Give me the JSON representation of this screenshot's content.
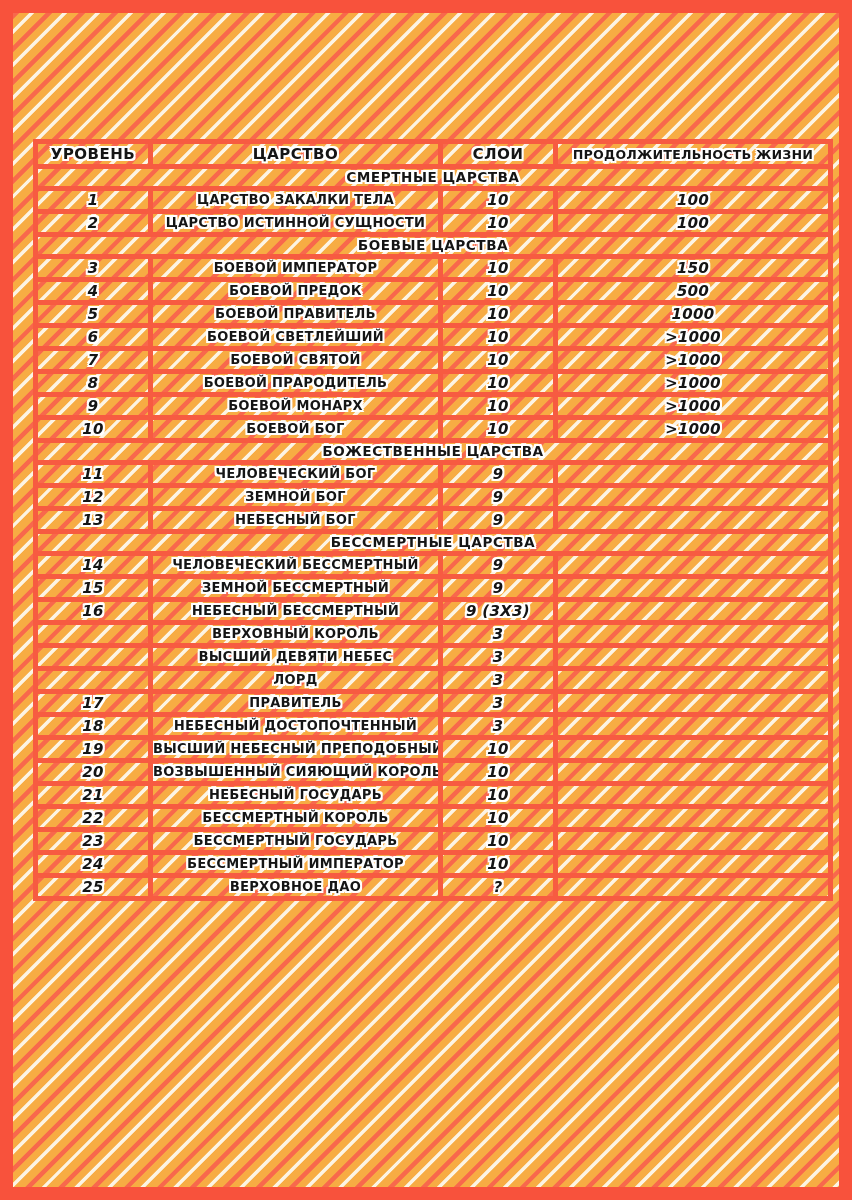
{
  "colors": {
    "frame_coral": "#F8523C",
    "line_coral": "#F75B41",
    "stripe_red": "#F8684C",
    "background_orange": "#F7AC43",
    "stripe_cream": "#FCF4E4",
    "text_black": "#151515",
    "text_outline": "#FFFFFF"
  },
  "chart_data": {
    "type": "table",
    "columns": [
      "УРОВЕНЬ",
      "ЦАРСТВО",
      "СЛОИ",
      "ПРОДОЛЖИТЕЛЬНОСТЬ ЖИЗНИ"
    ],
    "rows": [
      {
        "row_type": "section",
        "label": "СМЕРТНЫЕ ЦАРСТВА"
      },
      {
        "row_type": "data",
        "level": "1",
        "realm": "ЦАРСТВО ЗАКАЛКИ ТЕЛА",
        "layers": "10",
        "lifespan": "100"
      },
      {
        "row_type": "data",
        "level": "2",
        "realm": "ЦАРСТВО ИСТИННОЙ СУЩНОСТИ",
        "layers": "10",
        "lifespan": "100"
      },
      {
        "row_type": "section",
        "label": "БОЕВЫЕ ЦАРСТВА"
      },
      {
        "row_type": "data",
        "level": "3",
        "realm": "БОЕВОЙ ИМПЕРАТОР",
        "layers": "10",
        "lifespan": "150"
      },
      {
        "row_type": "data",
        "level": "4",
        "realm": "БОЕВОЙ ПРЕДОК",
        "layers": "10",
        "lifespan": "500"
      },
      {
        "row_type": "data",
        "level": "5",
        "realm": "БОЕВОЙ ПРАВИТЕЛЬ",
        "layers": "10",
        "lifespan": "1000"
      },
      {
        "row_type": "data",
        "level": "6",
        "realm": "БОЕВОЙ СВЕТЛЕЙШИЙ",
        "layers": "10",
        "lifespan": ">1000"
      },
      {
        "row_type": "data",
        "level": "7",
        "realm": "БОЕВОЙ СВЯТОЙ",
        "layers": "10",
        "lifespan": ">1000"
      },
      {
        "row_type": "data",
        "level": "8",
        "realm": "БОЕВОЙ ПРАРОДИТЕЛЬ",
        "layers": "10",
        "lifespan": ">1000"
      },
      {
        "row_type": "data",
        "level": "9",
        "realm": "БОЕВОЙ МОНАРХ",
        "layers": "10",
        "lifespan": ">1000"
      },
      {
        "row_type": "data",
        "level": "10",
        "realm": "БОЕВОЙ БОГ",
        "layers": "10",
        "lifespan": ">1000"
      },
      {
        "row_type": "section",
        "label": "БОЖЕСТВЕННЫЕ ЦАРСТВА"
      },
      {
        "row_type": "data",
        "level": "11",
        "realm": "ЧЕЛОВЕЧЕСКИЙ БОГ",
        "layers": "9",
        "lifespan": ""
      },
      {
        "row_type": "data",
        "level": "12",
        "realm": "ЗЕМНОЙ БОГ",
        "layers": "9",
        "lifespan": ""
      },
      {
        "row_type": "data",
        "level": "13",
        "realm": "НЕБЕСНЫЙ БОГ",
        "layers": "9",
        "lifespan": ""
      },
      {
        "row_type": "section",
        "label": "БЕССМЕРТНЫЕ ЦАРСТВА"
      },
      {
        "row_type": "data",
        "level": "14",
        "realm": "ЧЕЛОВЕЧЕСКИЙ БЕССМЕРТНЫЙ",
        "layers": "9",
        "lifespan": ""
      },
      {
        "row_type": "data",
        "level": "15",
        "realm": "ЗЕМНОЙ БЕССМЕРТНЫЙ",
        "layers": "9",
        "lifespan": ""
      },
      {
        "row_type": "data",
        "level": "16",
        "realm": "НЕБЕСНЫЙ БЕССМЕРТНЫЙ",
        "layers": "9 (3X3)",
        "lifespan": ""
      },
      {
        "row_type": "data",
        "level": "",
        "realm": "ВЕРХОВНЫЙ КОРОЛЬ",
        "layers": "3",
        "lifespan": ""
      },
      {
        "row_type": "data",
        "level": "",
        "realm": "ВЫСШИЙ ДЕВЯТИ НЕБЕС",
        "layers": "3",
        "lifespan": ""
      },
      {
        "row_type": "data",
        "level": "",
        "realm": "ЛОРД",
        "layers": "3",
        "lifespan": ""
      },
      {
        "row_type": "data",
        "level": "17",
        "realm": "ПРАВИТЕЛЬ",
        "layers": "3",
        "lifespan": ""
      },
      {
        "row_type": "data",
        "level": "18",
        "realm": "НЕБЕСНЫЙ ДОСТОПОЧТЕННЫЙ",
        "layers": "3",
        "lifespan": ""
      },
      {
        "row_type": "data",
        "level": "19",
        "realm": "ВЫСШИЙ НЕБЕСНЫЙ ПРЕПОДОБНЫЙ",
        "layers": "10",
        "lifespan": ""
      },
      {
        "row_type": "data",
        "level": "20",
        "realm": "ВОЗВЫШЕННЫЙ СИЯЮЩИЙ КОРОЛЬ",
        "layers": "10",
        "lifespan": ""
      },
      {
        "row_type": "data",
        "level": "21",
        "realm": "НЕБЕСНЫЙ ГОСУДАРЬ",
        "layers": "10",
        "lifespan": ""
      },
      {
        "row_type": "data",
        "level": "22",
        "realm": "БЕССМЕРТНЫЙ КОРОЛЬ",
        "layers": "10",
        "lifespan": ""
      },
      {
        "row_type": "data",
        "level": "23",
        "realm": "БЕССМЕРТНЫЙ ГОСУДАРЬ",
        "layers": "10",
        "lifespan": ""
      },
      {
        "row_type": "data",
        "level": "24",
        "realm": "БЕССМЕРТНЫЙ ИМПЕРАТОР",
        "layers": "10",
        "lifespan": ""
      },
      {
        "row_type": "data",
        "level": "25",
        "realm": "ВЕРХОВНОЕ ДАО",
        "layers": "?",
        "lifespan": ""
      }
    ]
  }
}
